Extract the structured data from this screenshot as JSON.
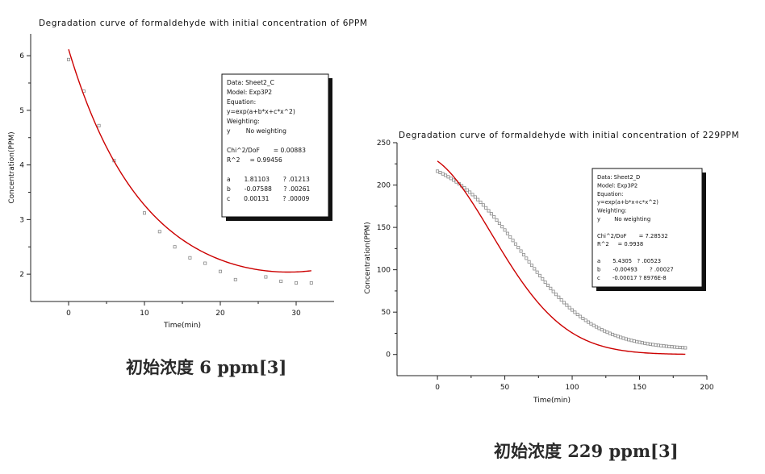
{
  "chart_data": [
    {
      "type": "scatter",
      "title": "Degradation curve of formaldehyde with initial concentration of 6PPM",
      "xlabel": "Time(min)",
      "ylabel": "Concentration(PPM)",
      "xlim": [
        -5,
        35
      ],
      "ylim": [
        1.5,
        6.4
      ],
      "xticks": [
        0,
        10,
        20,
        30
      ],
      "yticks": [
        2,
        3,
        4,
        5,
        6
      ],
      "grid": false,
      "series": [
        {
          "kind": "points",
          "color": "#888888",
          "x": [
            0,
            2,
            4,
            6,
            10,
            12,
            14,
            16,
            18,
            20,
            22,
            26,
            28,
            30,
            32
          ],
          "y": [
            5.93,
            5.35,
            4.72,
            4.08,
            3.12,
            2.78,
            2.5,
            2.3,
            2.2,
            2.05,
            1.9,
            1.95,
            1.87,
            1.84,
            1.84
          ]
        },
        {
          "kind": "fit",
          "color": "#cc0000",
          "model": "exp(a + b*x + c*x^2)",
          "params": {
            "a": 1.81103,
            "b": -0.07588,
            "c": 0.00131
          },
          "x_range": [
            0,
            32
          ]
        }
      ],
      "stats_box": {
        "lines": [
          "Data: Sheet2_C",
          "Model: Exp3P2",
          "Equation:",
          "y=exp(a+b*x+c*x^2)",
          "Weighting:",
          "y        No weighting",
          "",
          "Chi^2/DoF       = 0.00883",
          "R^2     = 0.99456",
          "",
          "a       1.81103       ? .01213",
          "b       -0.07588      ? .00261",
          "c       0.00131       ? .00009"
        ]
      }
    },
    {
      "type": "scatter",
      "title": "Degradation curve of formaldehyde with initial concentration of 229PPM",
      "xlabel": "Time(min)",
      "ylabel": "Concentration(PPM)",
      "xlim": [
        -30,
        200
      ],
      "ylim": [
        -25,
        250
      ],
      "xticks": [
        0,
        50,
        100,
        150,
        200
      ],
      "yticks": [
        0,
        50,
        100,
        150,
        200,
        250
      ],
      "grid": false,
      "series": [
        {
          "kind": "points",
          "color": "#888888",
          "x_start": 0,
          "x_end": 184,
          "x_step": 2,
          "model": "logistic",
          "params": {
            "top": 234,
            "mid": 62,
            "slope": 0.036,
            "offset": -3
          }
        },
        {
          "kind": "fit",
          "color": "#cc0000",
          "model": "exp(a + b*x + c*x^2)",
          "params": {
            "a": 5.4305,
            "b": -0.00493,
            "c": -0.00017
          },
          "x_range": [
            0,
            184
          ]
        }
      ],
      "stats_box": {
        "lines": [
          "Data: Sheet2_D",
          "Model: Exp3P2",
          "Equation:",
          "y=exp(a+b*x+c*x^2)",
          "Weighting:",
          "y        No weighting",
          "",
          "Chi^2/DoF       = 7.28532",
          "R^2     = 0.9938",
          "",
          "a       5.4305   ? .00523",
          "b       -0.00493       ? .00027",
          "c       -0.00017 ? 8976E-8"
        ]
      }
    }
  ],
  "captions": {
    "left": "初始浓度 6 ppm[3]",
    "right": "初始浓度 229 ppm[3]"
  }
}
